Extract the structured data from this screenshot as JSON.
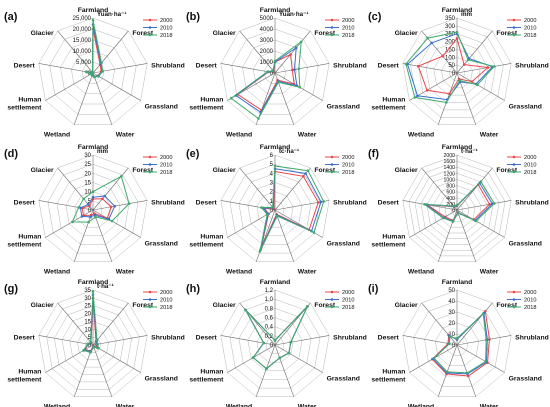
{
  "colors": {
    "s2000": "#e8474b",
    "s2010": "#3a6fd0",
    "s2018": "#3daa6d",
    "grid": "#b7b7b7",
    "axis": "#6a6a6a"
  },
  "chart_data": [
    {
      "panel_label": "(a)",
      "type": "radar",
      "unit": "Yuan·ha⁻¹",
      "categories": [
        "Farmland",
        "Forest",
        "Shrubland",
        "Grassland",
        "Water",
        "Wetland",
        "Human settlement",
        "Desert",
        "Glacier"
      ],
      "axis_ticks": [
        "0",
        "5,000",
        "10,000",
        "15,000",
        "20,000",
        "25,000"
      ],
      "rmax": 25000,
      "series": [
        {
          "name": "2000",
          "values": [
            20000,
            5000,
            3800,
            2500,
            1700,
            1000,
            700,
            2600,
            300
          ]
        },
        {
          "name": "2010",
          "values": [
            22000,
            5600,
            4200,
            2700,
            1800,
            1100,
            800,
            2800,
            350
          ]
        },
        {
          "name": "2018",
          "values": [
            24000,
            6000,
            4500,
            3000,
            2000,
            1200,
            900,
            3200,
            400
          ]
        }
      ]
    },
    {
      "panel_label": "(b)",
      "type": "radar",
      "unit": "Yuan·ha⁻¹",
      "categories": [
        "Farmland",
        "Forest",
        "Shrubland",
        "Grassland",
        "Water",
        "Wetland",
        "Human settlement",
        "Desert",
        "Glacier"
      ],
      "axis_ticks": [
        "0",
        "1000",
        "2000",
        "3000",
        "4000",
        "5000"
      ],
      "rmax": 5000,
      "series": [
        {
          "name": "2000",
          "values": [
            1000,
            2200,
            1600,
            2000,
            700,
            3600,
            3900,
            600,
            200
          ]
        },
        {
          "name": "2010",
          "values": [
            1000,
            3000,
            1800,
            2300,
            800,
            3800,
            4100,
            650,
            250
          ]
        },
        {
          "name": "2018",
          "values": [
            1100,
            3700,
            2200,
            2600,
            900,
            4400,
            4600,
            700,
            300
          ]
        }
      ]
    },
    {
      "panel_label": "(c)",
      "type": "radar",
      "unit": "mm",
      "categories": [
        "Farmland",
        "Forest",
        "Shrubland",
        "Grassland",
        "Water",
        "Wetland",
        "Human settlement",
        "Desert",
        "Glacier"
      ],
      "axis_ticks": [
        "0",
        "50",
        "100",
        "150",
        "200",
        "250",
        "300",
        "350"
      ],
      "rmax": 350,
      "series": [
        {
          "name": "2000",
          "values": [
            220,
            70,
            200,
            110,
            40,
            140,
            220,
            250,
            140
          ]
        },
        {
          "name": "2010",
          "values": [
            250,
            120,
            230,
            140,
            60,
            180,
            290,
            320,
            250
          ]
        },
        {
          "name": "2018",
          "values": [
            260,
            110,
            240,
            150,
            50,
            200,
            310,
            330,
            290
          ]
        }
      ]
    },
    {
      "panel_label": "(d)",
      "type": "radar",
      "unit": "mm",
      "categories": [
        "Farmland",
        "Forest",
        "Shrubland",
        "Grassland",
        "Water",
        "Wetland",
        "Human settlement",
        "Desert",
        "Glacier"
      ],
      "axis_ticks": [
        "0",
        "5",
        "10",
        "15",
        "20",
        "25",
        "30"
      ],
      "rmax": 30,
      "series": [
        {
          "name": "2000",
          "values": [
            6,
            8,
            10,
            9,
            2,
            3,
            6,
            6,
            3
          ]
        },
        {
          "name": "2010",
          "values": [
            7,
            10,
            12,
            10,
            3,
            4,
            7,
            7,
            4
          ]
        },
        {
          "name": "2018",
          "values": [
            10,
            24,
            20,
            12,
            4,
            7,
            13,
            8,
            8
          ]
        }
      ]
    },
    {
      "panel_label": "(e)",
      "type": "radar",
      "unit": "tc·ha⁻¹",
      "categories": [
        "Farmland",
        "Forest",
        "Shrubland",
        "Grassland",
        "Water",
        "Wetland",
        "Human settlement",
        "Desert",
        "Glacier"
      ],
      "axis_ticks": [
        "0",
        "1",
        "2",
        "3",
        "4",
        "5",
        "6"
      ],
      "rmax": 6,
      "series": [
        {
          "name": "2000",
          "values": [
            4.2,
            4.8,
            4.8,
            4.3,
            0.5,
            4.4,
            0.8,
            1.2,
            0.2
          ]
        },
        {
          "name": "2010",
          "values": [
            4.5,
            5.2,
            5.1,
            4.6,
            0.6,
            4.6,
            0.9,
            1.3,
            0.3
          ]
        },
        {
          "name": "2018",
          "values": [
            4.8,
            5.6,
            5.4,
            4.9,
            0.7,
            4.8,
            1.0,
            1.5,
            0.4
          ]
        }
      ]
    },
    {
      "panel_label": "(f)",
      "type": "radar",
      "unit": "t·ha⁻¹",
      "categories": [
        "Farmland",
        "Forest",
        "Shrubland",
        "Grassland",
        "Water",
        "Wetland",
        "Human settlement",
        "Desert",
        "Glacier"
      ],
      "axis_ticks": [
        "0",
        "200",
        "400",
        "600",
        "800",
        "1000",
        "1200",
        "1400",
        "1600",
        "2000"
      ],
      "rmax": 2000,
      "series": [
        {
          "name": "2000",
          "values": [
            150,
            1200,
            1200,
            700,
            100,
            400,
            500,
            1100,
            150
          ]
        },
        {
          "name": "2010",
          "values": [
            160,
            1280,
            1300,
            760,
            110,
            430,
            560,
            1150,
            170
          ]
        },
        {
          "name": "2018",
          "values": [
            170,
            1350,
            1380,
            800,
            120,
            450,
            580,
            1200,
            190
          ]
        }
      ]
    },
    {
      "panel_label": "(g)",
      "type": "radar",
      "unit": "t·ha⁻¹",
      "categories": [
        "Farmland",
        "Forest",
        "Shrubland",
        "Grassland",
        "Water",
        "Wetland",
        "Human settlement",
        "Desert",
        "Glacier"
      ],
      "axis_ticks": [
        "0",
        "5",
        "10",
        "15",
        "20",
        "25",
        "30",
        "35"
      ],
      "rmax": 35,
      "series": [
        {
          "name": "2000",
          "values": [
            30,
            3,
            2,
            3,
            1,
            4,
            6,
            3,
            2
          ]
        },
        {
          "name": "2010",
          "values": [
            32,
            3.5,
            2.5,
            3.5,
            1.2,
            4.5,
            6.5,
            3.3,
            2.2
          ]
        },
        {
          "name": "2018",
          "values": [
            34,
            4,
            3,
            4,
            1.5,
            5,
            7,
            3.5,
            2.5
          ]
        }
      ]
    },
    {
      "panel_label": "(h)",
      "type": "radar",
      "unit": "",
      "categories": [
        "Farmland",
        "Forest",
        "Shrubland",
        "Grassland",
        "Water",
        "Wetland",
        "Human settlement",
        "Desert",
        "Glacier"
      ],
      "axis_ticks": [
        "0",
        "0.2",
        "0.4",
        "0.6",
        "0.8",
        "1.0",
        "1.2"
      ],
      "rmax": 1.2,
      "series": [
        {
          "name": "2000",
          "values": [
            0.1,
            1.1,
            0.35,
            0.35,
            0.3,
            0.55,
            0.55,
            0.25,
            1.0
          ]
        },
        {
          "name": "2010",
          "values": [
            0.1,
            1.1,
            0.35,
            0.35,
            0.3,
            0.55,
            0.55,
            0.25,
            1.0
          ]
        },
        {
          "name": "2018",
          "values": [
            0.1,
            1.1,
            0.35,
            0.35,
            0.3,
            0.55,
            0.55,
            0.25,
            1.0
          ]
        }
      ]
    },
    {
      "panel_label": "(i)",
      "type": "radar",
      "unit": "",
      "categories": [
        "Farmland",
        "Forest",
        "Shrubland",
        "Grassland",
        "Water",
        "Wetland",
        "Human settlement",
        "Desert",
        "Glacier"
      ],
      "axis_ticks": [
        "0",
        "10",
        "20",
        "30",
        "40",
        "50"
      ],
      "rmax": 50,
      "series": [
        {
          "name": "2000",
          "values": [
            5,
            40,
            30,
            32,
            30,
            28,
            26,
            8,
            12
          ]
        },
        {
          "name": "2010",
          "values": [
            5,
            38,
            28,
            31,
            28,
            27,
            25,
            7,
            11
          ]
        },
        {
          "name": "2018",
          "values": [
            6,
            37,
            27,
            30,
            27,
            26,
            24,
            7,
            10
          ]
        }
      ]
    }
  ]
}
